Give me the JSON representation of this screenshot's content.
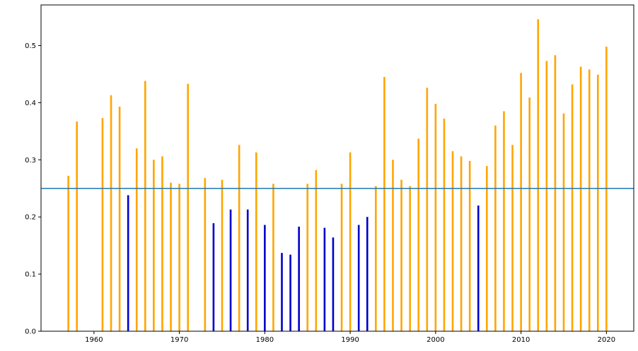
{
  "chart_data": {
    "type": "bar",
    "title": "",
    "xlabel": "",
    "ylabel": "",
    "xlim": [
      1953.8,
      2023.2
    ],
    "ylim": [
      0.0,
      0.571
    ],
    "xticks": [
      1960,
      1970,
      1980,
      1990,
      2000,
      2010,
      2020
    ],
    "yticks": [
      0.0,
      0.1,
      0.2,
      0.3,
      0.4,
      0.5
    ],
    "ytick_labels": [
      "0.0",
      "0.1",
      "0.2",
      "0.3",
      "0.4",
      "0.5"
    ],
    "grid": false,
    "legend": "none",
    "threshold": 0.25,
    "colors": {
      "above": "#FFA500",
      "below": "#0000CD",
      "threshold_line": "#1f77b4",
      "axes": "#000000"
    },
    "x": [
      1957,
      1958,
      1961,
      1962,
      1963,
      1964,
      1965,
      1966,
      1967,
      1968,
      1969,
      1970,
      1971,
      1973,
      1974,
      1975,
      1976,
      1977,
      1978,
      1979,
      1980,
      1981,
      1982,
      1983,
      1984,
      1985,
      1986,
      1987,
      1988,
      1989,
      1990,
      1991,
      1992,
      1993,
      1994,
      1995,
      1996,
      1997,
      1998,
      1999,
      2000,
      2001,
      2002,
      2003,
      2004,
      2005,
      2006,
      2007,
      2008,
      2009,
      2010,
      2011,
      2012,
      2013,
      2014,
      2015,
      2016,
      2017,
      2018,
      2019,
      2020
    ],
    "values": [
      0.272,
      0.367,
      0.373,
      0.413,
      0.393,
      0.238,
      0.32,
      0.438,
      0.3,
      0.306,
      0.26,
      0.258,
      0.433,
      0.268,
      0.189,
      0.265,
      0.213,
      0.326,
      0.213,
      0.313,
      0.186,
      0.258,
      0.137,
      0.134,
      0.183,
      0.258,
      0.282,
      0.181,
      0.164,
      0.258,
      0.313,
      0.186,
      0.2,
      0.254,
      0.445,
      0.3,
      0.265,
      0.254,
      0.337,
      0.426,
      0.398,
      0.372,
      0.315,
      0.306,
      0.298,
      0.22,
      0.289,
      0.36,
      0.385,
      0.326,
      0.452,
      0.409,
      0.546,
      0.473,
      0.483,
      0.381,
      0.432,
      0.463,
      0.458,
      0.449,
      0.498
    ]
  }
}
